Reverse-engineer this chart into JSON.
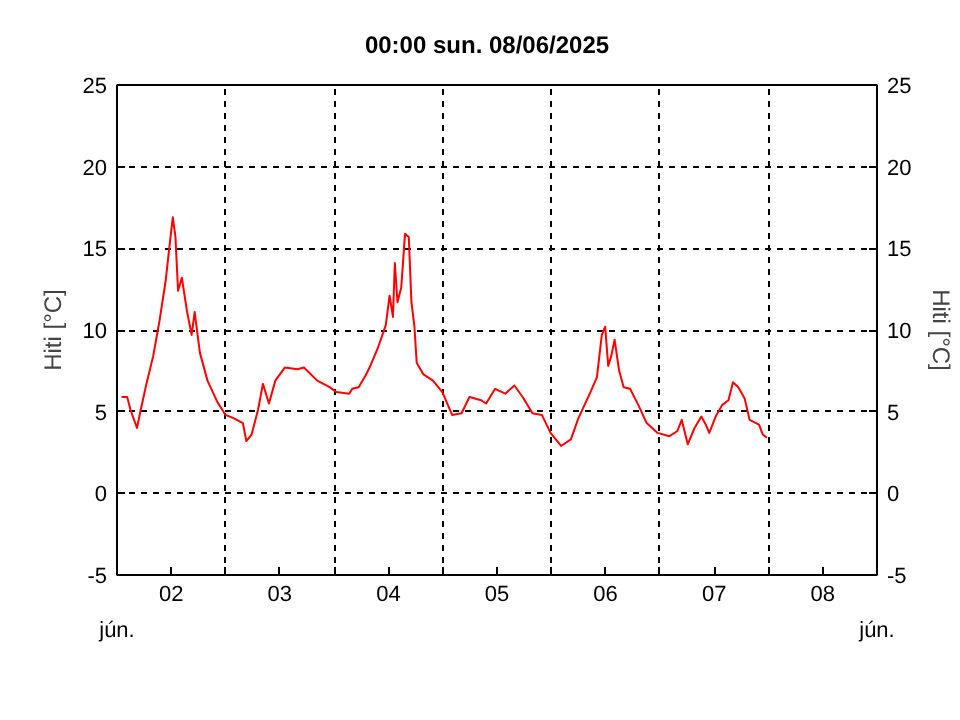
{
  "chart_data": {
    "type": "line",
    "title": "00:00   sun.  08/06/2025",
    "ylabel": "Hiti [°C]",
    "annotations": [
      "jún.",
      "jún."
    ],
    "xlim": [
      "2025-06-02T00:00",
      "2025-06-09T00:00"
    ],
    "xticks": [
      {
        "value": "2025-06-02T00:00",
        "label": null
      },
      {
        "value": "2025-06-02T12:00",
        "label": "02"
      },
      {
        "value": "2025-06-03T00:00",
        "label": null
      },
      {
        "value": "2025-06-03T12:00",
        "label": "03"
      },
      {
        "value": "2025-06-04T00:00",
        "label": null
      },
      {
        "value": "2025-06-04T12:00",
        "label": "04"
      },
      {
        "value": "2025-06-05T00:00",
        "label": null
      },
      {
        "value": "2025-06-05T12:00",
        "label": "05"
      },
      {
        "value": "2025-06-06T00:00",
        "label": null
      },
      {
        "value": "2025-06-06T12:00",
        "label": "06"
      },
      {
        "value": "2025-06-07T00:00",
        "label": null
      },
      {
        "value": "2025-06-07T12:00",
        "label": "07"
      },
      {
        "value": "2025-06-08T00:00",
        "label": null
      },
      {
        "value": "2025-06-08T12:00",
        "label": "08"
      },
      {
        "value": "2025-06-09T00:00",
        "label": null
      }
    ],
    "ylim": [
      -5,
      25
    ],
    "yticks": [
      -5,
      0,
      5,
      10,
      15,
      20,
      25
    ],
    "y2lim": [
      -5,
      25
    ],
    "y2ticks": [
      -5,
      0,
      5,
      10,
      15,
      20,
      25
    ],
    "grid": true,
    "series": [
      {
        "color": "#ff0000",
        "x": [
          "2025-06-02T01:00",
          "2025-06-02T02:15",
          "2025-06-02T03:00",
          "2025-06-02T04:25",
          "2025-06-02T05:05",
          "2025-06-02T06:30",
          "2025-06-02T08:00",
          "2025-06-02T09:25",
          "2025-06-02T10:45",
          "2025-06-02T11:50",
          "2025-06-02T12:20",
          "2025-06-02T12:55",
          "2025-06-02T13:30",
          "2025-06-02T14:20",
          "2025-06-02T15:30",
          "2025-06-02T16:30",
          "2025-06-02T17:10",
          "2025-06-02T18:20",
          "2025-06-02T20:00",
          "2025-06-02T22:10",
          "2025-06-03T00:00",
          "2025-06-03T01:45",
          "2025-06-03T03:50",
          "2025-06-03T04:35",
          "2025-06-03T05:45",
          "2025-06-03T07:10",
          "2025-06-03T08:15",
          "2025-06-03T09:35",
          "2025-06-03T11:00",
          "2025-06-03T13:05",
          "2025-06-03T15:55",
          "2025-06-03T17:20",
          "2025-06-03T20:15",
          "2025-06-03T23:00",
          "2025-06-04T00:30",
          "2025-06-04T03:20",
          "2025-06-04T04:00",
          "2025-06-04T05:25",
          "2025-06-04T06:55",
          "2025-06-04T07:50",
          "2025-06-04T09:40",
          "2025-06-04T11:25",
          "2025-06-04T12:15",
          "2025-06-04T13:00",
          "2025-06-04T13:25",
          "2025-06-04T14:00",
          "2025-06-04T14:50",
          "2025-06-04T15:40",
          "2025-06-04T16:30",
          "2025-06-04T17:05",
          "2025-06-04T17:45",
          "2025-06-04T18:15",
          "2025-06-04T19:40",
          "2025-06-04T21:50",
          "2025-06-04T23:55",
          "2025-06-05T02:05",
          "2025-06-05T04:10",
          "2025-06-05T05:55",
          "2025-06-05T08:30",
          "2025-06-05T09:35",
          "2025-06-05T11:35",
          "2025-06-05T13:50",
          "2025-06-05T15:50",
          "2025-06-05T17:40",
          "2025-06-05T19:50",
          "2025-06-05T21:55",
          "2025-06-05T23:50",
          "2025-06-06T02:10",
          "2025-06-06T04:20",
          "2025-06-06T06:00",
          "2025-06-06T08:20",
          "2025-06-06T10:05",
          "2025-06-06T11:10",
          "2025-06-06T11:55",
          "2025-06-06T12:35",
          "2025-06-06T13:15",
          "2025-06-06T14:00",
          "2025-06-06T15:00",
          "2025-06-06T16:00",
          "2025-06-06T17:25",
          "2025-06-06T19:15",
          "2025-06-06T21:05",
          "2025-06-06T23:30",
          "2025-06-07T02:05",
          "2025-06-07T03:50",
          "2025-06-07T04:50",
          "2025-06-07T06:10",
          "2025-06-07T07:40",
          "2025-06-07T09:10",
          "2025-06-07T10:10",
          "2025-06-07T10:55",
          "2025-06-07T12:20",
          "2025-06-07T13:45",
          "2025-06-07T15:10",
          "2025-06-07T16:10",
          "2025-06-07T17:20",
          "2025-06-07T18:45",
          "2025-06-07T19:50",
          "2025-06-07T21:55",
          "2025-06-07T22:45",
          "2025-06-07T23:40"
        ],
        "values": [
          5.9,
          5.9,
          5.1,
          4.0,
          4.9,
          6.7,
          8.4,
          10.6,
          13.0,
          15.7,
          16.9,
          15.7,
          12.4,
          13.2,
          11.1,
          9.7,
          11.1,
          8.6,
          6.9,
          5.6,
          4.8,
          4.6,
          4.3,
          3.2,
          3.6,
          5.1,
          6.7,
          5.5,
          6.9,
          7.7,
          7.6,
          7.7,
          6.9,
          6.5,
          6.2,
          6.1,
          6.4,
          6.5,
          7.2,
          7.7,
          8.9,
          10.3,
          12.1,
          10.8,
          14.1,
          11.7,
          12.6,
          15.9,
          15.7,
          11.7,
          10.2,
          8.0,
          7.3,
          6.9,
          6.2,
          4.8,
          4.9,
          5.9,
          5.7,
          5.5,
          6.4,
          6.1,
          6.6,
          5.9,
          4.9,
          4.8,
          3.7,
          2.9,
          3.3,
          4.6,
          6.0,
          7.1,
          9.7,
          10.2,
          7.8,
          8.4,
          9.4,
          7.5,
          6.5,
          6.4,
          5.4,
          4.3,
          3.7,
          3.5,
          3.8,
          4.5,
          3.0,
          4.0,
          4.7,
          4.2,
          3.7,
          4.7,
          5.4,
          5.7,
          6.8,
          6.5,
          5.8,
          4.5,
          4.2,
          3.6,
          3.4
        ]
      }
    ]
  }
}
